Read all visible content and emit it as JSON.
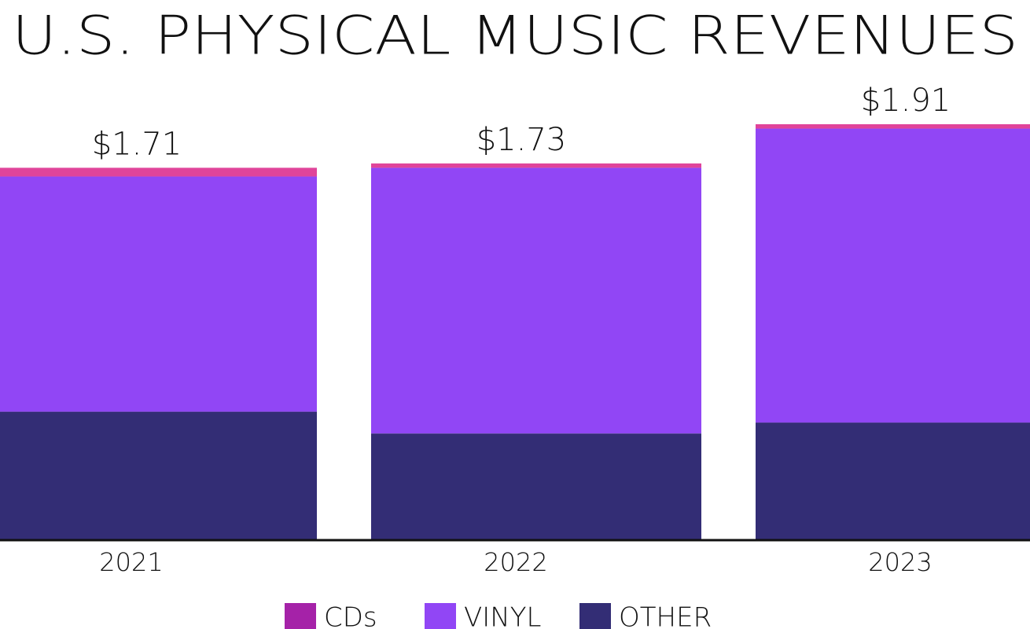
{
  "chart_data": {
    "type": "stacked_bar",
    "title": "U.S. PHYSICAL MUSIC REVENUES",
    "categories": [
      "2021",
      "2022",
      "2023"
    ],
    "series": [
      {
        "name": "CDs",
        "color": "#e0449a",
        "legend_color": "#a522a8",
        "values": [
          0.04,
          0.02,
          0.02
        ]
      },
      {
        "name": "VINYL",
        "color": "#9146f5",
        "values": [
          1.08,
          1.22,
          1.35
        ]
      },
      {
        "name": "OTHER",
        "color": "#332d75",
        "values": [
          0.59,
          0.49,
          0.54
        ]
      }
    ],
    "totals": [
      1.71,
      1.73,
      1.91
    ],
    "total_labels": [
      "$1.71",
      "$1.73",
      "$1.91"
    ]
  }
}
